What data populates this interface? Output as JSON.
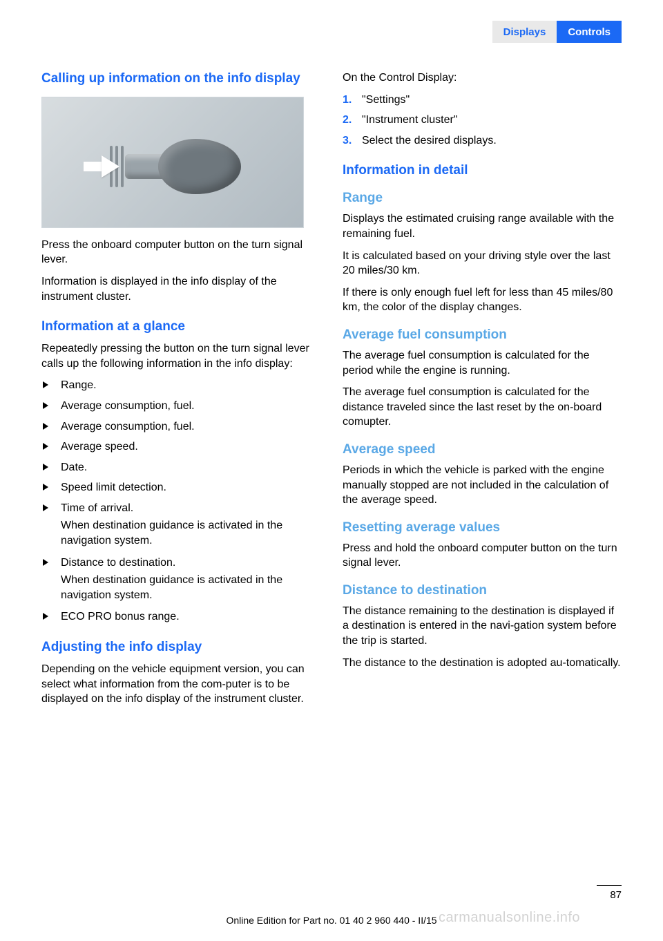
{
  "header": {
    "tab_gray": "Displays",
    "tab_blue": "Controls"
  },
  "left": {
    "h2_calling": "Calling up information on the info display",
    "p_press": "Press the onboard computer button on the turn signal lever.",
    "p_info_disp": "Information is displayed in the info display of the instrument cluster.",
    "h3_glance": "Information at a glance",
    "p_repeat": "Repeatedly pressing the button on the turn signal lever calls up the following information in the info display:",
    "glance_items": [
      {
        "label": "Range."
      },
      {
        "label": "Average consumption, fuel."
      },
      {
        "label": "Average consumption, fuel."
      },
      {
        "label": "Average speed."
      },
      {
        "label": "Date."
      },
      {
        "label": "Speed limit detection."
      },
      {
        "label": "Time of arrival.",
        "sub": "When destination guidance is activated in the navigation system."
      },
      {
        "label": "Distance to destination.",
        "sub": "When destination guidance is activated in the navigation system."
      },
      {
        "label": "ECO PRO bonus range."
      }
    ],
    "h3_adjust": "Adjusting the info display",
    "p_adjust": "Depending on the vehicle equipment version, you can select what information from the com‐puter is to be displayed on the info display of the instrument cluster."
  },
  "right": {
    "p_on_control": "On the Control Display:",
    "steps": [
      {
        "n": "1.",
        "t": "\"Settings\""
      },
      {
        "n": "2.",
        "t": "\"Instrument cluster\""
      },
      {
        "n": "3.",
        "t": "Select the desired displays."
      }
    ],
    "h3_detail": "Information in detail",
    "h4_range": "Range",
    "p_range1": "Displays the estimated cruising range available with the remaining fuel.",
    "p_range2": "It is calculated based on your driving style over the last 20 miles/30 km.",
    "p_range3": "If there is only enough fuel left for less than 45 miles/80 km, the color of the display changes.",
    "h4_avgfuel": "Average fuel consumption",
    "p_avgfuel1": "The average fuel consumption is calculated for the period while the engine is running.",
    "p_avgfuel2": "The average fuel consumption is calculated for the distance traveled since the last reset by the on-board comupter.",
    "h4_avgspeed": "Average speed",
    "p_avgspeed": "Periods in which the vehicle is parked with the engine manually stopped are not included in the calculation of the average speed.",
    "h4_reset": "Resetting average values",
    "p_reset": "Press and hold the onboard computer button on the turn signal lever.",
    "h4_dist": "Distance to destination",
    "p_dist1": "The distance remaining to the destination is displayed if a destination is entered in the navi‐gation system before the trip is started.",
    "p_dist2": "The distance to the destination is adopted au‐tomatically."
  },
  "footer": {
    "page_num": "87",
    "line": "Online Edition for Part no. 01 40 2 960 440 - II/15",
    "watermark": "carmanualsonline.info"
  }
}
